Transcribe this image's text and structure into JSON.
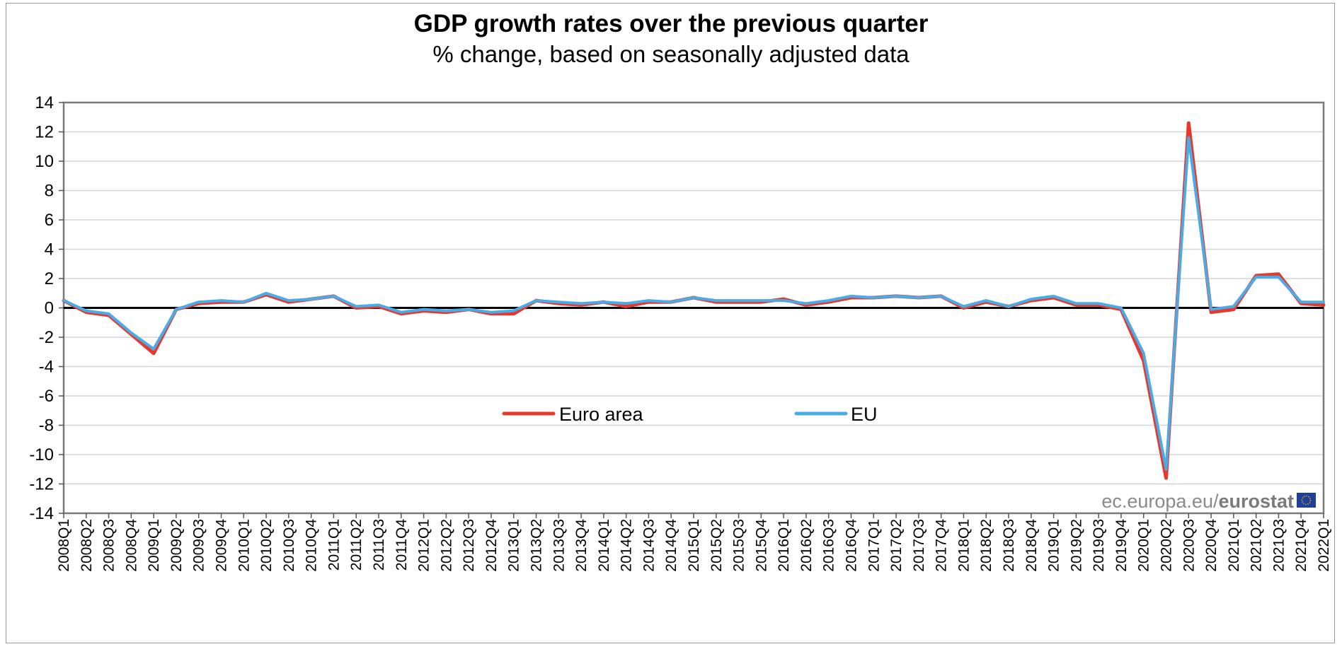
{
  "chart_data": {
    "type": "line",
    "title": "GDP growth rates over the previous quarter",
    "subtitle": "% change, based on seasonally adjusted data",
    "xlabel": "",
    "ylabel": "",
    "ylim": [
      -14,
      14
    ],
    "yticks": [
      14,
      12,
      10,
      8,
      6,
      4,
      2,
      0,
      -2,
      -4,
      -6,
      -8,
      -10,
      -12,
      -14
    ],
    "grid": true,
    "legend_position": "center",
    "categories": [
      "2008Q1",
      "2008Q2",
      "2008Q3",
      "2008Q4",
      "2009Q1",
      "2009Q2",
      "2009Q3",
      "2009Q4",
      "2010Q1",
      "2010Q2",
      "2010Q3",
      "2010Q4",
      "2011Q1",
      "2011Q2",
      "2011Q3",
      "2011Q4",
      "2012Q1",
      "2012Q2",
      "2012Q3",
      "2012Q4",
      "2013Q1",
      "2013Q2",
      "2013Q3",
      "2013Q4",
      "2014Q1",
      "2014Q2",
      "2014Q3",
      "2014Q4",
      "2015Q1",
      "2015Q2",
      "2015Q3",
      "2015Q4",
      "2016Q1",
      "2016Q2",
      "2016Q3",
      "2016Q4",
      "2017Q1",
      "2017Q2",
      "2017Q3",
      "2017Q4",
      "2018Q1",
      "2018Q2",
      "2018Q3",
      "2018Q4",
      "2019Q1",
      "2019Q2",
      "2019Q3",
      "2019Q4",
      "2020Q1",
      "2020Q2",
      "2020Q3",
      "2020Q4",
      "2021Q1",
      "2021Q2",
      "2021Q3",
      "2021Q4",
      "2022Q1"
    ],
    "series": [
      {
        "name": "Euro area",
        "color": "#e8382d",
        "values": [
          0.5,
          -0.3,
          -0.5,
          -1.8,
          -3.1,
          -0.1,
          0.3,
          0.4,
          0.4,
          0.9,
          0.4,
          0.6,
          0.8,
          0.0,
          0.1,
          -0.4,
          -0.2,
          -0.3,
          -0.1,
          -0.4,
          -0.4,
          0.5,
          0.3,
          0.2,
          0.4,
          0.1,
          0.4,
          0.4,
          0.7,
          0.4,
          0.4,
          0.4,
          0.6,
          0.2,
          0.4,
          0.7,
          0.7,
          0.8,
          0.7,
          0.8,
          0.0,
          0.4,
          0.1,
          0.5,
          0.7,
          0.2,
          0.2,
          -0.1,
          -3.6,
          -11.6,
          12.6,
          -0.3,
          -0.1,
          2.2,
          2.3,
          0.3,
          0.2
        ]
      },
      {
        "name": "EU",
        "color": "#4aace7",
        "values": [
          0.5,
          -0.2,
          -0.4,
          -1.7,
          -2.8,
          -0.1,
          0.4,
          0.5,
          0.4,
          1.0,
          0.5,
          0.6,
          0.8,
          0.1,
          0.2,
          -0.3,
          -0.1,
          -0.2,
          -0.1,
          -0.3,
          -0.2,
          0.5,
          0.4,
          0.3,
          0.4,
          0.3,
          0.5,
          0.4,
          0.7,
          0.5,
          0.5,
          0.5,
          0.5,
          0.3,
          0.5,
          0.8,
          0.7,
          0.8,
          0.7,
          0.8,
          0.1,
          0.5,
          0.1,
          0.6,
          0.8,
          0.3,
          0.3,
          0.0,
          -3.1,
          -11.0,
          11.6,
          -0.1,
          0.1,
          2.1,
          2.1,
          0.4,
          0.4
        ]
      }
    ]
  },
  "watermark": {
    "prefix": "ec.europa.eu/",
    "brand": "eurostat"
  }
}
